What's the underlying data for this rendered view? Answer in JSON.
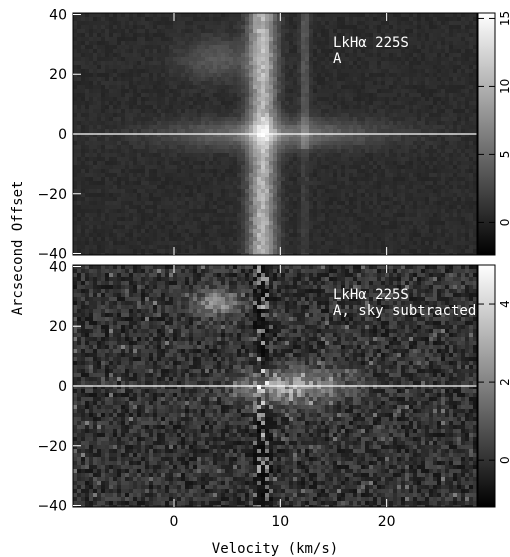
{
  "chart_data": [
    {
      "type": "heatmap",
      "xlim": [
        -9.5,
        28.5
      ],
      "ylim": [
        -40.5,
        40.5
      ],
      "x_ticks": [
        0,
        10,
        20
      ],
      "y_ticks": [
        -40,
        -20,
        0,
        20,
        40
      ],
      "y_tick_labels": [
        "−40",
        "−20",
        "0",
        "20",
        "40"
      ],
      "show_x_tick_labels": false,
      "annotation_lines": [
        "LkHα 225S",
        "A"
      ],
      "colorbar": {
        "range": [
          -2.4,
          15.4
        ],
        "ticks": [
          0,
          5,
          10,
          15
        ],
        "labels": [
          "0",
          "5",
          "10",
          "15"
        ]
      },
      "features": {
        "vertical_band_velocity": 8.3,
        "secondary_band_velocity": 12.3,
        "horizontal_band_offset": 0,
        "reference_line_offset": 0
      }
    },
    {
      "type": "heatmap",
      "xlim": [
        -9.5,
        28.5
      ],
      "ylim": [
        -40.5,
        40.5
      ],
      "x_ticks": [
        0,
        10,
        20
      ],
      "y_ticks": [
        -40,
        -20,
        0,
        20,
        40
      ],
      "y_tick_labels": [
        "−40",
        "−20",
        "0",
        "20",
        "40"
      ],
      "x_tick_labels": [
        "0",
        "10",
        "20"
      ],
      "show_x_tick_labels": true,
      "annotation_lines": [
        "LkHα 225S",
        "A, sky subtracted"
      ],
      "colorbar": {
        "range": [
          -1.2,
          5.0
        ],
        "ticks": [
          0,
          2,
          4
        ],
        "labels": [
          "0",
          "2",
          "4"
        ]
      },
      "features": {
        "vertical_band_velocity": 8.3,
        "horizontal_band_offset": 0,
        "reference_line_offset": 0
      }
    }
  ],
  "xlabel": "Velocity (km/s)",
  "ylabel": "Arcsecond Offset"
}
